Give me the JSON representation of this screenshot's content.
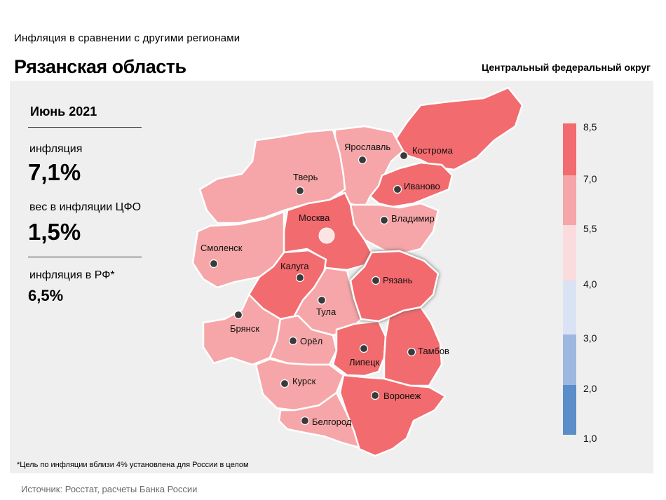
{
  "header": {
    "subtitle": "Инфляция  в сравнении  с другими  регионами",
    "title": "Рязанская область",
    "district": "Центральный федеральный округ"
  },
  "info": {
    "period": "Июнь 2021",
    "inflation_label": "инфляция",
    "inflation_value": "7,1%",
    "weight_label": "вес в инфляции  ЦФО",
    "weight_value": "1,5%",
    "rf_label": "инфляция  в РФ*",
    "rf_value": "6,5%"
  },
  "footnote": "*Цель по инфляции вблизи 4% установлена для России в целом",
  "source": "Источник: Росстат, расчеты Банка России",
  "legend": {
    "ticks": [
      "8,5",
      "7,0",
      "5,5",
      "4,0",
      "3,0",
      "2,0",
      "1,0"
    ],
    "bins": [
      {
        "from": 7.0,
        "to": 8.5,
        "color": "#f26b6e"
      },
      {
        "from": 5.5,
        "to": 7.0,
        "color": "#f6a6a8"
      },
      {
        "from": 4.0,
        "to": 5.5,
        "color": "#fadcdf"
      },
      {
        "from": 3.0,
        "to": 4.0,
        "color": "#d9e3f3"
      },
      {
        "from": 2.0,
        "to": 3.0,
        "color": "#9db7de"
      },
      {
        "from": 1.0,
        "to": 2.0,
        "color": "#5b8dc8"
      }
    ]
  },
  "regions": [
    {
      "name": "Кострома",
      "class": "high"
    },
    {
      "name": "Ярославль",
      "class": "mid"
    },
    {
      "name": "Иваново",
      "class": "high"
    },
    {
      "name": "Тверь",
      "class": "mid"
    },
    {
      "name": "Владимир",
      "class": "mid"
    },
    {
      "name": "Москва",
      "class": "high"
    },
    {
      "name": "Смоленск",
      "class": "mid"
    },
    {
      "name": "Калуга",
      "class": "high"
    },
    {
      "name": "Рязань",
      "class": "high"
    },
    {
      "name": "Тула",
      "class": "mid"
    },
    {
      "name": "Брянск",
      "class": "mid"
    },
    {
      "name": "Орёл",
      "class": "mid"
    },
    {
      "name": "Липецк",
      "class": "high"
    },
    {
      "name": "Тамбов",
      "class": "high"
    },
    {
      "name": "Курск",
      "class": "mid"
    },
    {
      "name": "Воронеж",
      "class": "high"
    },
    {
      "name": "Белгород",
      "class": "mid"
    }
  ],
  "colors": {
    "high": "#f26b6e",
    "mid": "#f6a6a8",
    "moscow_marker": "#fce4e4"
  }
}
